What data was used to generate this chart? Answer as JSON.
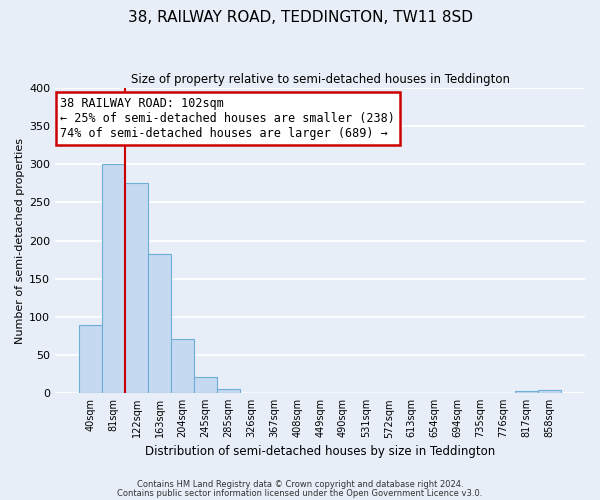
{
  "title": "38, RAILWAY ROAD, TEDDINGTON, TW11 8SD",
  "subtitle": "Size of property relative to semi-detached houses in Teddington",
  "xlabel": "Distribution of semi-detached houses by size in Teddington",
  "ylabel": "Number of semi-detached properties",
  "bar_labels": [
    "40sqm",
    "81sqm",
    "122sqm",
    "163sqm",
    "204sqm",
    "245sqm",
    "285sqm",
    "326sqm",
    "367sqm",
    "408sqm",
    "449sqm",
    "490sqm",
    "531sqm",
    "572sqm",
    "613sqm",
    "654sqm",
    "694sqm",
    "735sqm",
    "776sqm",
    "817sqm",
    "858sqm"
  ],
  "bar_values": [
    90,
    300,
    275,
    183,
    71,
    21,
    5,
    0,
    0,
    0,
    0,
    0,
    0,
    0,
    0,
    0,
    0,
    0,
    0,
    3,
    4
  ],
  "bar_color": "#c5d9f0",
  "bar_edge_color": "#6baed6",
  "marker_line_color": "#cc0000",
  "annotation_text": "38 RAILWAY ROAD: 102sqm\n← 25% of semi-detached houses are smaller (238)\n74% of semi-detached houses are larger (689) →",
  "annotation_box_color": "#ffffff",
  "annotation_box_edge": "#cc0000",
  "ylim": [
    0,
    400
  ],
  "yticks": [
    0,
    50,
    100,
    150,
    200,
    250,
    300,
    350,
    400
  ],
  "background_color": "#e8eef8",
  "grid_color": "#ffffff",
  "footer_line1": "Contains HM Land Registry data © Crown copyright and database right 2024.",
  "footer_line2": "Contains public sector information licensed under the Open Government Licence v3.0."
}
